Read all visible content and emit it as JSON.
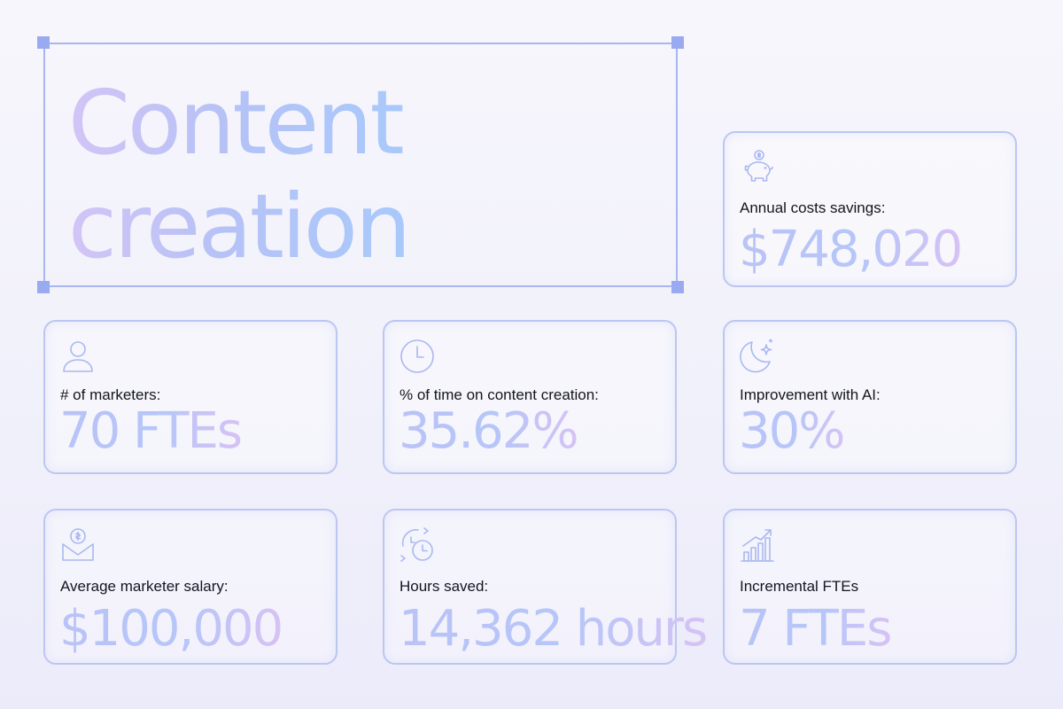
{
  "title": {
    "line1": "Content",
    "line2": "creation"
  },
  "colors": {
    "frame": "#a9b6ee",
    "handle": "#9aaaf0",
    "card_border": "#bcc6f2",
    "label_text": "#15151f",
    "value_gradient_start": "#b9c3f7",
    "value_gradient_end": "#d7c2f5"
  },
  "cards": {
    "savings": {
      "icon": "piggy-bank-icon",
      "label": "Annual costs savings:",
      "value": "$748,020"
    },
    "marketers": {
      "icon": "user-icon",
      "label": "# of marketers:",
      "value": "70 FTEs"
    },
    "time": {
      "icon": "clock-icon",
      "label": "% of time on content creation:",
      "value": "35.62%"
    },
    "ai": {
      "icon": "ai-sparkle-icon",
      "label": "Improvement with AI:",
      "value": "30%"
    },
    "salary": {
      "icon": "salary-envelope-icon",
      "label": "Average marketer salary:",
      "value": "$100,000"
    },
    "hours": {
      "icon": "time-saved-icon",
      "label": "Hours saved:",
      "value": "14,362 hours"
    },
    "fte": {
      "icon": "growth-chart-icon",
      "label": "Incremental FTEs",
      "value": "7 FTEs"
    }
  }
}
